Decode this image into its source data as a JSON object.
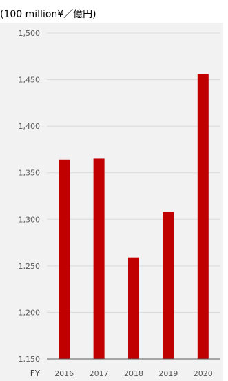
{
  "unit_label": "(100 million¥／億円)",
  "colors": {
    "bar": "#c00000",
    "panel": "#f2f2f2",
    "grid": "#d9d9d9",
    "axis": "#595959"
  },
  "chart_data": {
    "type": "bar",
    "title": "",
    "x_prefix_label": "FY",
    "categories": [
      "2016",
      "2017",
      "2018",
      "2019",
      "2020"
    ],
    "values": [
      1364,
      1365,
      1259,
      1308,
      1456
    ],
    "ylim": [
      1150,
      1500
    ],
    "yticks": [
      1150,
      1200,
      1250,
      1300,
      1350,
      1400,
      1450,
      1500
    ],
    "ytick_labels": [
      "1,150",
      "1,200",
      "1,250",
      "1,300",
      "1,350",
      "1,400",
      "1,450",
      "1,500"
    ],
    "grid": true,
    "legend": "none"
  }
}
